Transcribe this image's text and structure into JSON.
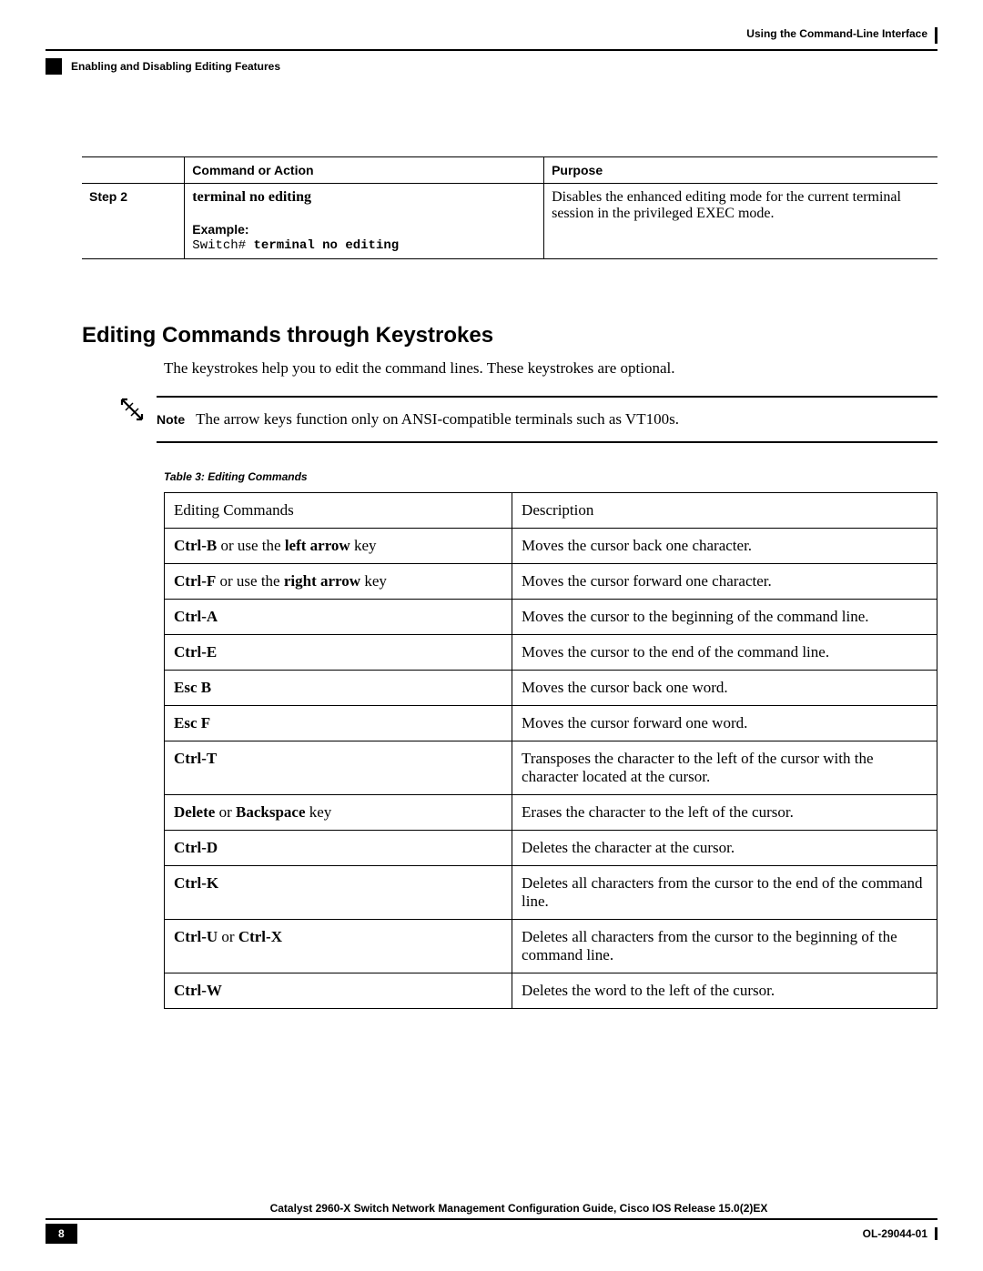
{
  "header": {
    "right": "Using the Command-Line Interface",
    "left": "Enabling and Disabling Editing Features"
  },
  "table1": {
    "headers": {
      "col1": "",
      "col2": "Command or Action",
      "col3": "Purpose"
    },
    "row": {
      "step": "Step 2",
      "command": "terminal no editing",
      "example_label": "Example:",
      "example_prompt": "Switch# ",
      "example_cmd": "terminal no editing",
      "purpose": "Disables the enhanced editing mode for the current terminal session in the privileged EXEC mode."
    }
  },
  "section": {
    "heading": "Editing Commands through Keystrokes",
    "intro": "The keystrokes help you to edit the command lines. These keystrokes are optional.",
    "note_label": "Note",
    "note_text": "The arrow keys function only on ANSI-compatible terminals such as VT100s.",
    "table_caption": "Table 3: Editing Commands"
  },
  "table2": {
    "header": {
      "c1": "Editing Commands",
      "c2": "Description"
    },
    "rows": [
      {
        "cmd_parts": [
          {
            "t": "Ctrl-B",
            "b": true
          },
          {
            "t": " or use the ",
            "b": false
          },
          {
            "t": "left arrow",
            "b": true
          },
          {
            "t": " key",
            "b": false
          }
        ],
        "desc": "Moves the cursor back one character."
      },
      {
        "cmd_parts": [
          {
            "t": "Ctrl-F",
            "b": true
          },
          {
            "t": " or use the ",
            "b": false
          },
          {
            "t": "right arrow",
            "b": true
          },
          {
            "t": " key",
            "b": false
          }
        ],
        "desc": "Moves the cursor forward one character."
      },
      {
        "cmd_parts": [
          {
            "t": "Ctrl-A",
            "b": true
          }
        ],
        "desc": "Moves the cursor to the beginning of the command line."
      },
      {
        "cmd_parts": [
          {
            "t": "Ctrl-E",
            "b": true
          }
        ],
        "desc": "Moves the cursor to the end of the command line."
      },
      {
        "cmd_parts": [
          {
            "t": "Esc B",
            "b": true
          }
        ],
        "desc": "Moves the cursor back one word."
      },
      {
        "cmd_parts": [
          {
            "t": "Esc F",
            "b": true
          }
        ],
        "desc": "Moves the cursor forward one word."
      },
      {
        "cmd_parts": [
          {
            "t": "Ctrl-T",
            "b": true
          }
        ],
        "desc": "Transposes the character to the left of the cursor with the character located at the cursor."
      },
      {
        "cmd_parts": [
          {
            "t": "Delete",
            "b": true
          },
          {
            "t": " or ",
            "b": false
          },
          {
            "t": "Backspace",
            "b": true
          },
          {
            "t": " key",
            "b": false
          }
        ],
        "desc": "Erases the character to the left of the cursor."
      },
      {
        "cmd_parts": [
          {
            "t": "Ctrl-D",
            "b": true
          }
        ],
        "desc": "Deletes the character at the cursor."
      },
      {
        "cmd_parts": [
          {
            "t": "Ctrl-K",
            "b": true
          }
        ],
        "desc": "Deletes all characters from the cursor to the end of the command line."
      },
      {
        "cmd_parts": [
          {
            "t": "Ctrl-U",
            "b": true
          },
          {
            "t": " or ",
            "b": false
          },
          {
            "t": "Ctrl-X",
            "b": true
          }
        ],
        "desc": "Deletes all characters from the cursor to the beginning of the command line."
      },
      {
        "cmd_parts": [
          {
            "t": "Ctrl-W",
            "b": true
          }
        ],
        "desc": "Deletes the word to the left of the cursor."
      }
    ]
  },
  "footer": {
    "title": "Catalyst 2960-X Switch Network Management Configuration Guide, Cisco IOS Release 15.0(2)EX",
    "page": "8",
    "docid": "OL-29044-01"
  }
}
